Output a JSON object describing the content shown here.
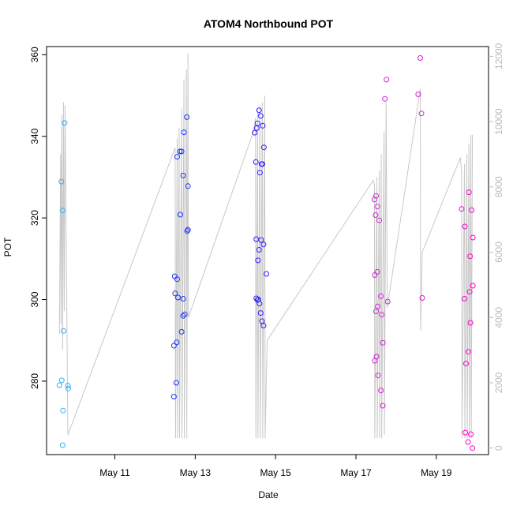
{
  "chart_data": {
    "type": "scatter",
    "title": "ATOM4 Northbound POT",
    "xlabel": "Date",
    "ylabel": "POT",
    "y2label": "",
    "x_ticks": [
      "May 11",
      "May 13",
      "May 15",
      "May 17",
      "May 19"
    ],
    "x_tick_days": [
      11,
      13,
      15,
      17,
      19
    ],
    "xlim": [
      9.3,
      20.3
    ],
    "ylim": [
      262,
      362
    ],
    "y_ticks": [
      280,
      300,
      320,
      340,
      360
    ],
    "y2lim": [
      -200,
      12300
    ],
    "y2_ticks": [
      0,
      2000,
      4000,
      6000,
      8000,
      10000,
      12000
    ],
    "grid": false,
    "legend": "none",
    "point_color_start": "#33b0ee",
    "point_color_end": "#ff00cc",
    "line_color": "#c8c8c8",
    "series": [
      {
        "values_day": [
          [
            9.67,
            328.9
          ],
          [
            9.7,
            321.8
          ],
          [
            9.72,
            292.3
          ],
          [
            9.75,
            343.3
          ],
          [
            9.62,
            279.0
          ],
          [
            9.68,
            280.2
          ],
          [
            9.71,
            272.8
          ],
          [
            9.7,
            264.3
          ],
          [
            9.83,
            278.9
          ],
          [
            9.84,
            278.2
          ],
          [
            12.47,
            288.7
          ],
          [
            12.49,
            305.7
          ],
          [
            12.5,
            301.5
          ],
          [
            12.53,
            279.6
          ],
          [
            12.55,
            305.0
          ],
          [
            12.47,
            276.2
          ],
          [
            12.55,
            335.0
          ],
          [
            12.62,
            336.3
          ],
          [
            12.66,
            336.3
          ],
          [
            12.7,
            330.4
          ],
          [
            12.72,
            341.0
          ],
          [
            12.79,
            344.7
          ],
          [
            12.82,
            327.8
          ],
          [
            12.63,
            320.8
          ],
          [
            12.66,
            292.1
          ],
          [
            12.7,
            296.0
          ],
          [
            12.74,
            296.4
          ],
          [
            12.8,
            316.8
          ],
          [
            12.82,
            317.1
          ],
          [
            12.57,
            300.5
          ],
          [
            12.7,
            300.2
          ],
          [
            12.54,
            289.5
          ],
          [
            14.48,
            340.9
          ],
          [
            14.55,
            343.2
          ],
          [
            14.59,
            346.4
          ],
          [
            14.63,
            345.0
          ],
          [
            14.68,
            342.6
          ],
          [
            14.71,
            337.3
          ],
          [
            14.51,
            333.7
          ],
          [
            14.65,
            333.2
          ],
          [
            14.67,
            333.2
          ],
          [
            14.61,
            331.1
          ],
          [
            14.52,
            314.8
          ],
          [
            14.59,
            312.2
          ],
          [
            14.56,
            309.6
          ],
          [
            14.64,
            314.6
          ],
          [
            14.7,
            313.5
          ],
          [
            14.77,
            306.3
          ],
          [
            14.52,
            300.3
          ],
          [
            14.55,
            299.9
          ],
          [
            14.57,
            300.0
          ],
          [
            14.6,
            299.0
          ],
          [
            14.63,
            296.7
          ],
          [
            14.66,
            294.7
          ],
          [
            14.7,
            293.6
          ],
          [
            14.53,
            342.0
          ]
        ]
      },
      {
        "values_day": [
          [
            17.46,
            324.5
          ],
          [
            17.5,
            325.4
          ],
          [
            17.53,
            322.8
          ],
          [
            17.49,
            320.7
          ],
          [
            17.58,
            319.4
          ],
          [
            17.47,
            306.0
          ],
          [
            17.53,
            306.8
          ],
          [
            17.62,
            300.8
          ],
          [
            17.54,
            298.3
          ],
          [
            17.5,
            297.1
          ],
          [
            17.64,
            296.3
          ],
          [
            17.79,
            299.5
          ],
          [
            17.67,
            289.4
          ],
          [
            17.47,
            285.0
          ],
          [
            17.51,
            286.0
          ],
          [
            17.55,
            281.4
          ],
          [
            17.62,
            277.7
          ],
          [
            17.67,
            274.0
          ],
          [
            17.72,
            349.2
          ],
          [
            17.76,
            353.9
          ],
          [
            18.55,
            350.3
          ],
          [
            18.6,
            359.2
          ],
          [
            18.63,
            345.6
          ],
          [
            18.65,
            300.4
          ],
          [
            19.63,
            322.2
          ],
          [
            19.71,
            317.9
          ],
          [
            19.81,
            326.3
          ],
          [
            19.88,
            321.9
          ],
          [
            19.91,
            315.2
          ],
          [
            19.84,
            310.6
          ],
          [
            19.7,
            300.2
          ],
          [
            19.83,
            301.9
          ],
          [
            19.91,
            303.4
          ],
          [
            19.85,
            294.3
          ],
          [
            19.74,
            284.3
          ],
          [
            19.8,
            287.2
          ],
          [
            19.72,
            267.4
          ],
          [
            19.86,
            267.0
          ],
          [
            19.79,
            265.1
          ],
          [
            19.9,
            263.6
          ]
        ]
      }
    ],
    "line_series_y2": [
      [
        9.62,
        3500
      ],
      [
        9.65,
        9000
      ],
      [
        9.66,
        3800
      ],
      [
        9.68,
        10200
      ],
      [
        9.7,
        3000
      ],
      [
        9.72,
        10600
      ],
      [
        9.74,
        4200
      ],
      [
        9.76,
        10500
      ],
      [
        9.83,
        400
      ],
      [
        12.5,
        9200
      ],
      [
        12.51,
        300
      ],
      [
        12.55,
        9500
      ],
      [
        12.56,
        300
      ],
      [
        12.6,
        9800
      ],
      [
        12.61,
        300
      ],
      [
        12.66,
        10400
      ],
      [
        12.67,
        300
      ],
      [
        12.72,
        11300
      ],
      [
        12.73,
        300
      ],
      [
        12.78,
        11600
      ],
      [
        12.79,
        300
      ],
      [
        12.82,
        12100
      ],
      [
        12.83,
        4000
      ],
      [
        14.45,
        9700
      ],
      [
        14.5,
        10100
      ],
      [
        14.51,
        300
      ],
      [
        14.55,
        10400
      ],
      [
        14.56,
        300
      ],
      [
        14.61,
        10500
      ],
      [
        14.62,
        300
      ],
      [
        14.67,
        10600
      ],
      [
        14.68,
        300
      ],
      [
        14.73,
        10800
      ],
      [
        14.74,
        300
      ],
      [
        14.79,
        3300
      ],
      [
        17.43,
        8200
      ],
      [
        17.46,
        8100
      ],
      [
        17.47,
        300
      ],
      [
        17.52,
        8300
      ],
      [
        17.53,
        300
      ],
      [
        17.58,
        8500
      ],
      [
        17.59,
        300
      ],
      [
        17.63,
        9000
      ],
      [
        17.64,
        300
      ],
      [
        17.7,
        9700
      ],
      [
        17.71,
        400
      ],
      [
        17.75,
        10600
      ],
      [
        17.78,
        4300
      ],
      [
        18.6,
        11000
      ],
      [
        18.61,
        3600
      ],
      [
        18.65,
        6000
      ],
      [
        19.6,
        8900
      ],
      [
        19.63,
        8400
      ],
      [
        19.64,
        300
      ],
      [
        19.7,
        8700
      ],
      [
        19.71,
        300
      ],
      [
        19.76,
        9000
      ],
      [
        19.77,
        300
      ],
      [
        19.81,
        9300
      ],
      [
        19.82,
        300
      ],
      [
        19.86,
        9600
      ],
      [
        19.87,
        300
      ],
      [
        19.9,
        9600
      ]
    ]
  }
}
